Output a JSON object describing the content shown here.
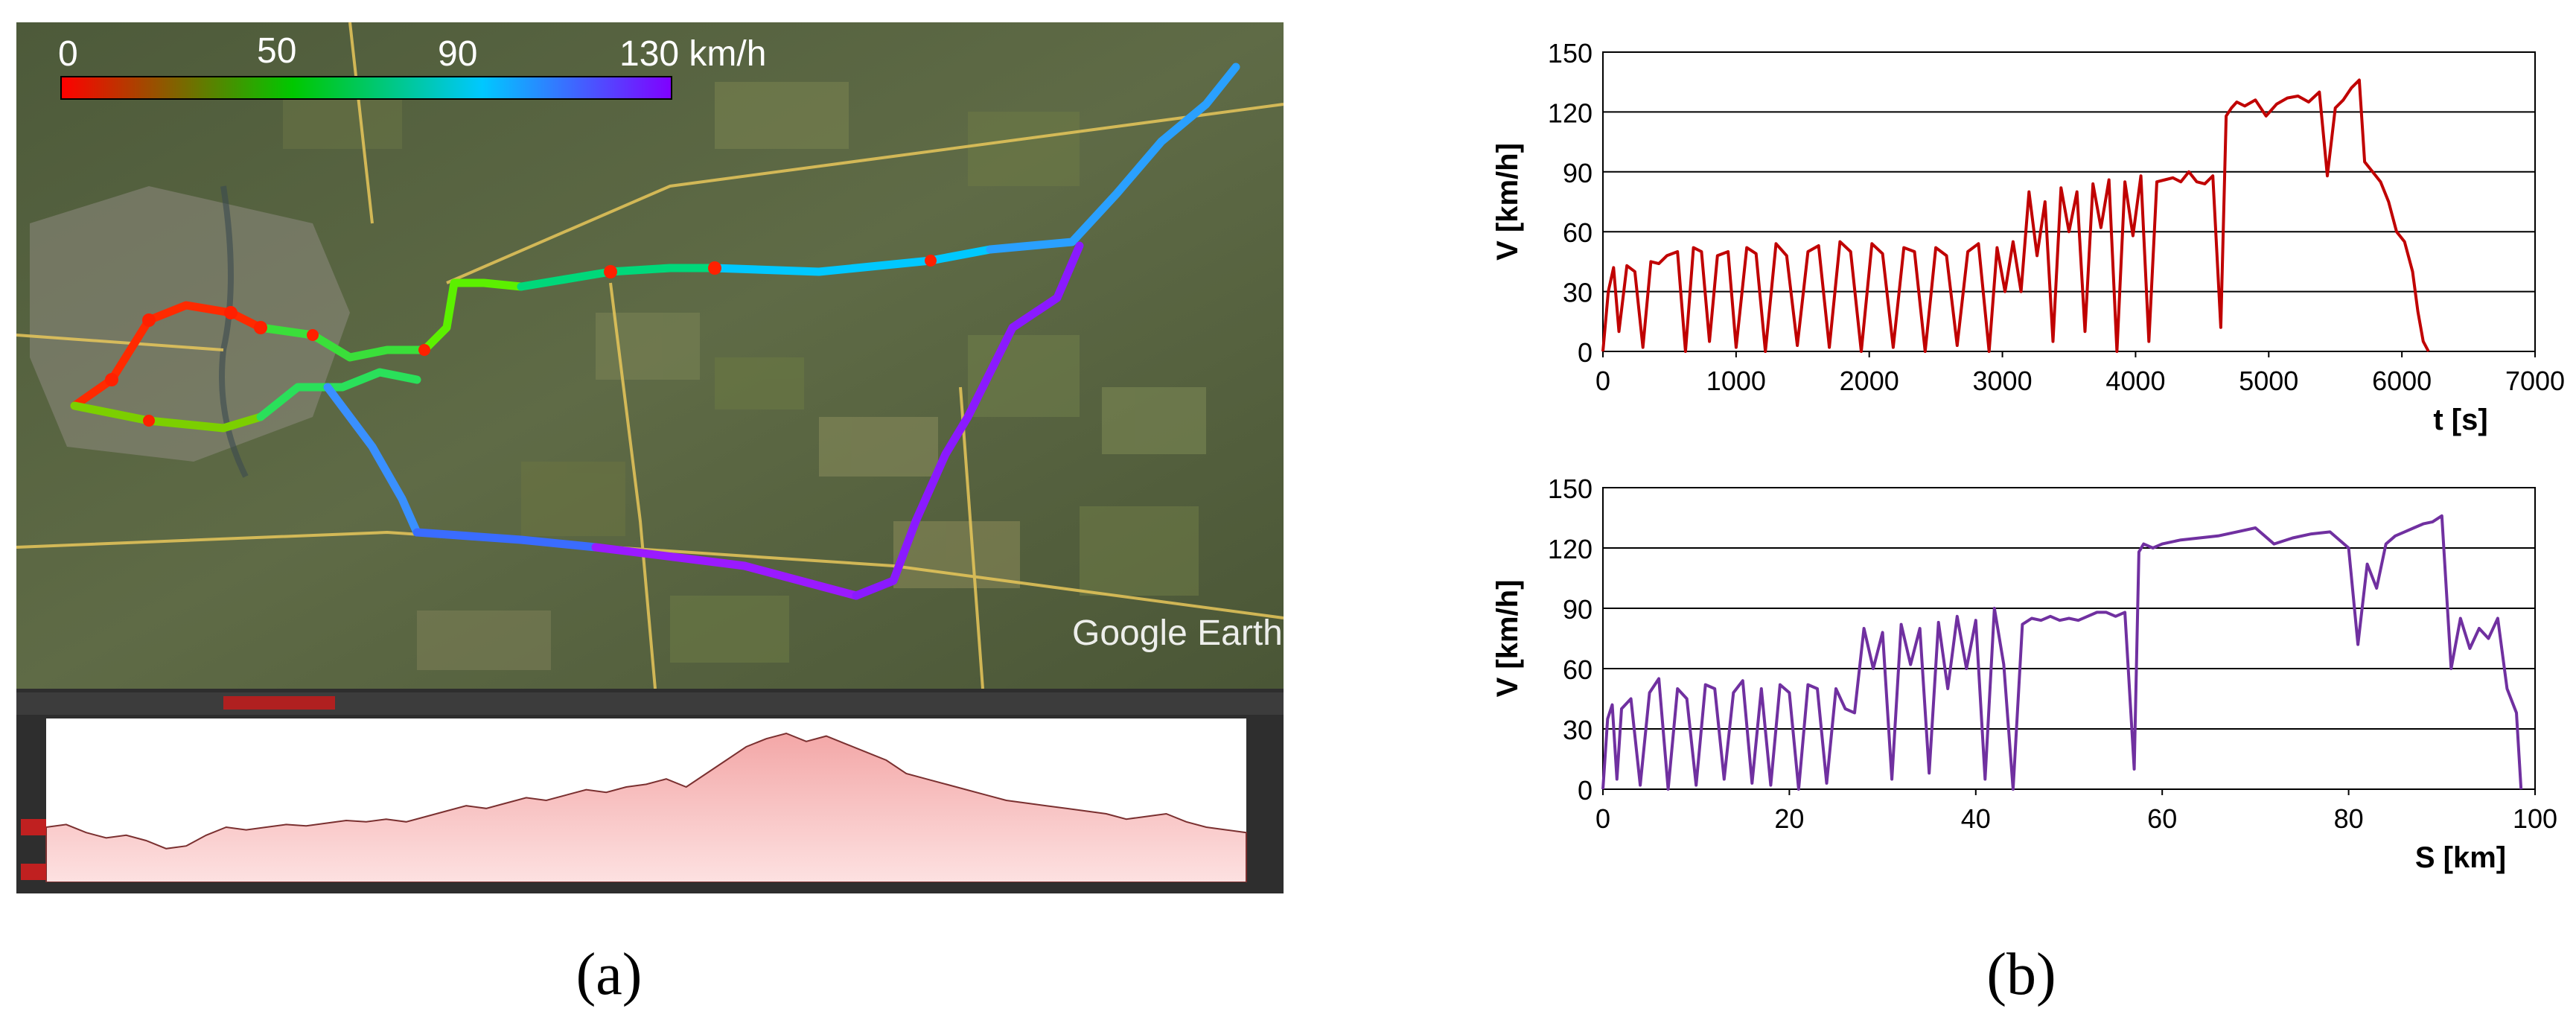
{
  "panel_a": {
    "caption": "(a)",
    "speed_legend": {
      "ticks": [
        "0",
        "50",
        "90",
        "130 km/h"
      ],
      "colors": [
        "#ff0000",
        "#00c800",
        "#00c8ff",
        "#8000ff"
      ]
    },
    "watermark": "Google Earth",
    "elevation_profile": {
      "fill_color": "#f7b7b7",
      "line_color": "#7a3030"
    }
  },
  "panel_b": {
    "caption": "(b)"
  },
  "chart_data": [
    {
      "type": "line",
      "title": "",
      "xlabel": "t [s]",
      "ylabel": "V [km/h]",
      "xlim": [
        0,
        7000
      ],
      "ylim": [
        0,
        150
      ],
      "xticks": [
        "0",
        "1000",
        "2000",
        "3000",
        "4000",
        "5000",
        "6000",
        "7000"
      ],
      "yticks": [
        "0",
        "30",
        "60",
        "90",
        "120",
        "150"
      ],
      "grid": "horizontal",
      "color": "#c00000",
      "x": [
        0,
        40,
        80,
        120,
        180,
        240,
        300,
        360,
        420,
        480,
        560,
        620,
        680,
        740,
        800,
        860,
        940,
        1000,
        1080,
        1150,
        1220,
        1300,
        1380,
        1460,
        1540,
        1620,
        1700,
        1780,
        1860,
        1940,
        2020,
        2100,
        2180,
        2260,
        2340,
        2420,
        2500,
        2580,
        2660,
        2740,
        2820,
        2900,
        2960,
        3020,
        3080,
        3140,
        3200,
        3260,
        3320,
        3380,
        3440,
        3500,
        3560,
        3620,
        3680,
        3740,
        3800,
        3860,
        3920,
        3980,
        4040,
        4100,
        4160,
        4220,
        4280,
        4340,
        4400,
        4460,
        4520,
        4580,
        4640,
        4680,
        4720,
        4760,
        4820,
        4900,
        4980,
        5060,
        5140,
        5220,
        5300,
        5380,
        5440,
        5500,
        5560,
        5620,
        5680,
        5720,
        5780,
        5840,
        5900,
        5960,
        6020,
        6080,
        6120,
        6160,
        6200
      ],
      "y": [
        0,
        30,
        42,
        10,
        43,
        40,
        2,
        45,
        44,
        48,
        50,
        0,
        52,
        50,
        5,
        48,
        50,
        2,
        52,
        49,
        0,
        54,
        48,
        3,
        50,
        53,
        2,
        55,
        50,
        0,
        54,
        49,
        2,
        52,
        50,
        0,
        52,
        48,
        3,
        50,
        54,
        0,
        52,
        30,
        55,
        30,
        80,
        48,
        75,
        5,
        82,
        60,
        80,
        10,
        84,
        62,
        86,
        0,
        85,
        58,
        88,
        5,
        85,
        86,
        87,
        85,
        90,
        85,
        84,
        88,
        12,
        118,
        122,
        125,
        123,
        126,
        118,
        124,
        127,
        128,
        125,
        130,
        88,
        122,
        126,
        132,
        136,
        95,
        90,
        85,
        75,
        60,
        55,
        40,
        20,
        5,
        0
      ],
      "markers": "none"
    },
    {
      "type": "line",
      "title": "",
      "xlabel": "S [km]",
      "ylabel": "V [km/h]",
      "xlim": [
        0,
        100
      ],
      "ylim": [
        0,
        150
      ],
      "xticks": [
        "0",
        "20",
        "40",
        "60",
        "80",
        "100"
      ],
      "yticks": [
        "0",
        "30",
        "60",
        "90",
        "120",
        "150"
      ],
      "grid": "horizontal",
      "color": "#7030a0",
      "x": [
        0,
        0.5,
        1,
        1.5,
        2,
        3,
        4,
        5,
        6,
        7,
        8,
        9,
        10,
        11,
        12,
        13,
        14,
        15,
        16,
        17,
        18,
        19,
        20,
        21,
        22,
        23,
        24,
        25,
        26,
        27,
        28,
        29,
        30,
        31,
        32,
        33,
        34,
        35,
        36,
        37,
        38,
        39,
        40,
        41,
        42,
        43,
        44,
        45,
        46,
        47,
        48,
        49,
        50,
        51,
        52,
        53,
        54,
        55,
        56,
        57,
        57.5,
        58,
        59,
        60,
        62,
        64,
        66,
        68,
        70,
        72,
        74,
        76,
        78,
        80,
        81,
        82,
        83,
        84,
        85,
        86,
        87,
        88,
        89,
        90,
        91,
        92,
        93,
        94,
        95,
        96,
        97,
        98,
        98.5
      ],
      "y": [
        0,
        35,
        42,
        5,
        40,
        45,
        2,
        48,
        55,
        0,
        50,
        45,
        2,
        52,
        50,
        5,
        48,
        54,
        3,
        50,
        2,
        52,
        48,
        0,
        52,
        50,
        3,
        50,
        40,
        38,
        80,
        60,
        78,
        5,
        82,
        62,
        80,
        8,
        83,
        50,
        86,
        60,
        84,
        5,
        90,
        62,
        0,
        82,
        85,
        84,
        86,
        84,
        85,
        84,
        86,
        88,
        88,
        86,
        88,
        10,
        118,
        122,
        120,
        122,
        124,
        125,
        126,
        128,
        130,
        122,
        125,
        127,
        128,
        120,
        72,
        112,
        100,
        122,
        126,
        128,
        130,
        132,
        133,
        136,
        60,
        85,
        70,
        80,
        75,
        85,
        50,
        38,
        0
      ],
      "markers": "none"
    }
  ]
}
